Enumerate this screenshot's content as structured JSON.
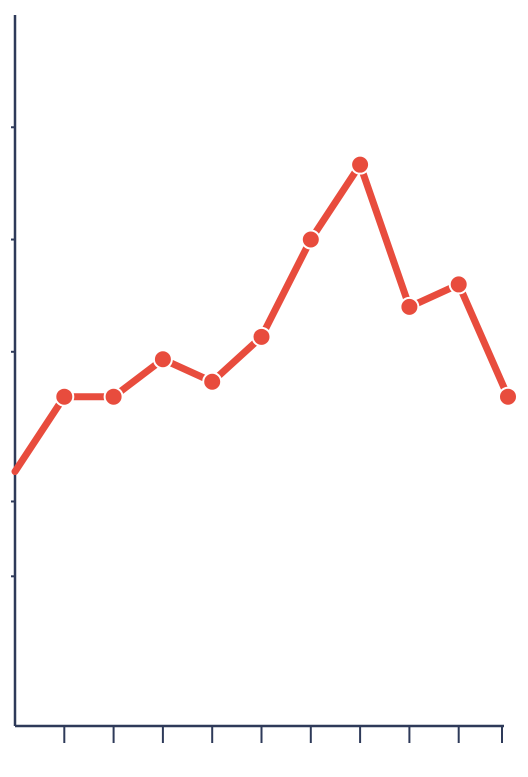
{
  "chart_data": {
    "type": "line",
    "title": "",
    "xlabel": "",
    "ylabel": "",
    "x": [
      0,
      1,
      2,
      3,
      4,
      5,
      6,
      7,
      8,
      9,
      10
    ],
    "series": [
      {
        "values": [
          1.4,
          2.4,
          2.4,
          2.9,
          2.6,
          3.2,
          4.5,
          5.5,
          3.6,
          3.9,
          2.4
        ]
      }
    ],
    "xlim": [
      0,
      10
    ],
    "ylim": [
      -2,
      7.5
    ],
    "x_ticks": [
      1,
      2,
      3,
      4,
      5,
      6,
      7,
      8,
      9,
      10
    ],
    "y_ticks_at": [
      0,
      1,
      3,
      4.5,
      6
    ],
    "grid": false,
    "legend": "none",
    "colors": {
      "series": "#e84c3d",
      "axis": "#2e3a59"
    }
  }
}
